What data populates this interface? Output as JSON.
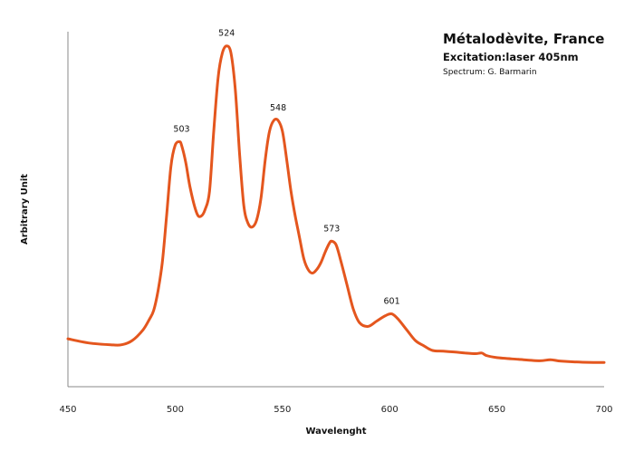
{
  "chart_data": {
    "type": "line",
    "title": "Métalodèvite, France",
    "subtitle": "Excitation:laser 405nm",
    "credit": "Spectrum: G. Barmarin",
    "xlabel": "Wavelenght",
    "ylabel": "Arbitrary Unit",
    "xlim": [
      450,
      700
    ],
    "ylim": [
      0,
      100
    ],
    "xticks": [
      "450",
      "500",
      "550",
      "600",
      "650",
      "700"
    ],
    "grid": false,
    "legend": "none",
    "series_color": "#e4561e",
    "series": [
      {
        "x": [
          450,
          460,
          470,
          475,
          480,
          485,
          488,
          490,
          492,
          494,
          496,
          498,
          500,
          502,
          503,
          505,
          507,
          510,
          512,
          514,
          516,
          518,
          520,
          522,
          524,
          526,
          528,
          530,
          532,
          534,
          536,
          538,
          540,
          542,
          544,
          546,
          548,
          550,
          552,
          554,
          556,
          558,
          560,
          562,
          564,
          566,
          568,
          570,
          572,
          573,
          575,
          577,
          580,
          583,
          586,
          590,
          594,
          598,
          601,
          604,
          608,
          612,
          616,
          620,
          625,
          630,
          635,
          640,
          643,
          645,
          650,
          660,
          670,
          675,
          680,
          690,
          700
        ],
        "y": [
          13.5,
          12.3,
          11.8,
          11.8,
          13,
          16,
          19,
          21.5,
          27,
          35,
          48,
          62,
          68,
          69,
          68,
          63,
          56,
          49,
          48,
          50,
          55,
          72,
          87,
          94,
          96,
          94,
          84,
          66,
          51,
          46,
          45,
          47,
          53,
          64,
          72,
          75,
          75,
          72,
          64,
          55,
          48,
          42,
          36,
          33,
          32,
          33,
          35,
          38,
          40.5,
          41,
          40,
          36,
          29,
          22,
          18,
          17,
          18.5,
          20,
          20.5,
          19,
          16,
          13,
          11.5,
          10.2,
          10,
          9.8,
          9.5,
          9.3,
          9.5,
          8.8,
          8.2,
          7.7,
          7.3,
          7.6,
          7.2,
          6.9,
          6.8
        ]
      }
    ],
    "peak_labels": [
      {
        "x": 503,
        "y": 69,
        "label": "503"
      },
      {
        "x": 524,
        "y": 96,
        "label": "524"
      },
      {
        "x": 548,
        "y": 75,
        "label": "548"
      },
      {
        "x": 573,
        "y": 41,
        "label": "573"
      },
      {
        "x": 601,
        "y": 20.5,
        "label": "601"
      }
    ]
  }
}
